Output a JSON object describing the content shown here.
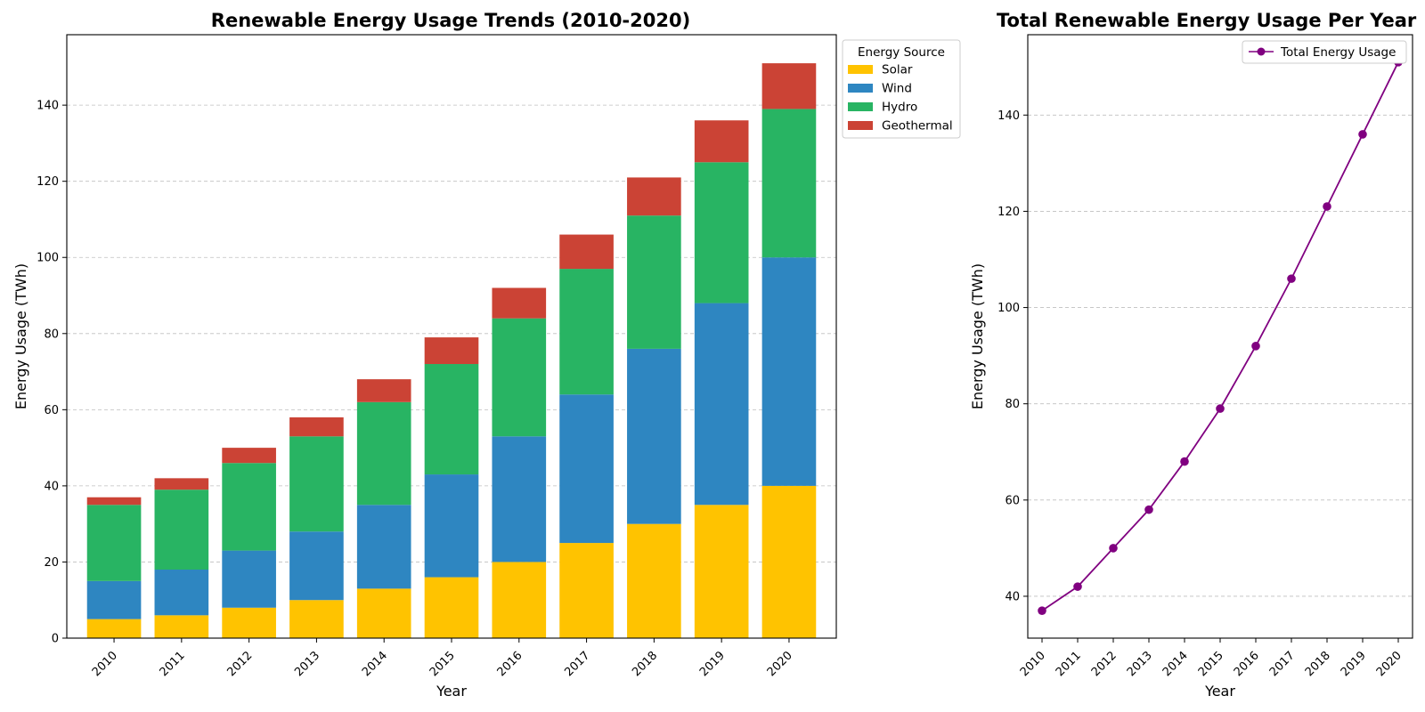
{
  "chart_data": [
    {
      "type": "bar",
      "stacked": true,
      "title": "Renewable Energy Usage Trends (2010-2020)",
      "xlabel": "Year",
      "ylabel": "Energy Usage (TWh)",
      "categories": [
        "2010",
        "2011",
        "2012",
        "2013",
        "2014",
        "2015",
        "2016",
        "2017",
        "2018",
        "2019",
        "2020"
      ],
      "series": [
        {
          "name": "Solar",
          "color": "#FFC300",
          "values": [
            5,
            6,
            8,
            10,
            13,
            16,
            20,
            25,
            30,
            35,
            40
          ]
        },
        {
          "name": "Wind",
          "color": "#2E86C1",
          "values": [
            10,
            12,
            15,
            18,
            22,
            27,
            33,
            39,
            46,
            53,
            60
          ]
        },
        {
          "name": "Hydro",
          "color": "#28B463",
          "values": [
            20,
            21,
            23,
            25,
            27,
            29,
            31,
            33,
            35,
            37,
            39
          ]
        },
        {
          "name": "Geothermal",
          "color": "#CB4335",
          "values": [
            2,
            3,
            4,
            5,
            6,
            7,
            8,
            9,
            10,
            11,
            12
          ]
        }
      ],
      "ylim": [
        0,
        158.5
      ],
      "yticks": [
        0,
        20,
        40,
        60,
        80,
        100,
        120,
        140
      ],
      "grid": "y",
      "legend": {
        "title": "Energy Source",
        "placement": "outside-upper-right"
      }
    },
    {
      "type": "line",
      "title": "Total Renewable Energy Usage Per Year",
      "xlabel": "Year",
      "ylabel": "Energy Usage (TWh)",
      "x": [
        "2010",
        "2011",
        "2012",
        "2013",
        "2014",
        "2015",
        "2016",
        "2017",
        "2018",
        "2019",
        "2020"
      ],
      "series": [
        {
          "name": "Total Energy Usage",
          "color": "#800080",
          "marker": "circle",
          "values": [
            37,
            42,
            50,
            58,
            68,
            79,
            92,
            106,
            121,
            136,
            151
          ]
        }
      ],
      "ylim": [
        31.3,
        156.7
      ],
      "yticks": [
        40,
        60,
        80,
        100,
        120,
        140
      ],
      "grid": "y",
      "legend": {
        "placement": "upper-right"
      }
    }
  ]
}
